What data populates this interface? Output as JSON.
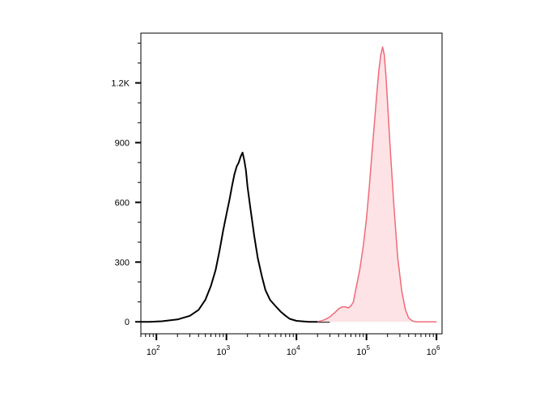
{
  "chart_data": {
    "type": "area",
    "title": "",
    "xlabel": "",
    "ylabel": "",
    "x_scale": "log",
    "xlim": [
      60,
      1200000
    ],
    "ylim": [
      -60,
      1450
    ],
    "grid": false,
    "legend": "none",
    "y_ticks": [
      {
        "value": 0,
        "label": "0"
      },
      {
        "value": 300,
        "label": "300"
      },
      {
        "value": 600,
        "label": "600"
      },
      {
        "value": 900,
        "label": "900"
      },
      {
        "value": 1200,
        "label": "1.2K"
      }
    ],
    "x_ticks": [
      {
        "value": 100,
        "base": "10",
        "exp": "2"
      },
      {
        "value": 1000,
        "base": "10",
        "exp": "3"
      },
      {
        "value": 10000,
        "base": "10",
        "exp": "4"
      },
      {
        "value": 100000,
        "base": "10",
        "exp": "5"
      },
      {
        "value": 1000000,
        "base": "10",
        "exp": "6"
      }
    ],
    "series": [
      {
        "color": "#000000",
        "fill": "none",
        "x": [
          60,
          80,
          120,
          200,
          300,
          400,
          500,
          600,
          700,
          800,
          900,
          1000,
          1100,
          1200,
          1300,
          1400,
          1500,
          1600,
          1700,
          1800,
          1900,
          2000,
          2200,
          2500,
          2800,
          3200,
          3600,
          4200,
          5000,
          6000,
          7000,
          8000,
          10000,
          15000,
          30000
        ],
        "y": [
          0,
          0,
          3,
          12,
          30,
          60,
          110,
          180,
          260,
          360,
          460,
          540,
          610,
          680,
          740,
          780,
          800,
          830,
          850,
          810,
          760,
          680,
          570,
          430,
          320,
          230,
          160,
          110,
          80,
          50,
          30,
          15,
          5,
          0,
          0
        ]
      },
      {
        "color": "#f06a78",
        "fill": "#fde3e6",
        "x": [
          20000,
          25000,
          30000,
          35000,
          40000,
          45000,
          50000,
          55000,
          60000,
          65000,
          70000,
          80000,
          90000,
          100000,
          110000,
          120000,
          130000,
          140000,
          150000,
          160000,
          170000,
          180000,
          190000,
          200000,
          220000,
          250000,
          280000,
          320000,
          360000,
          400000,
          450000,
          500000,
          1000000
        ],
        "y": [
          0,
          10,
          25,
          45,
          65,
          75,
          75,
          70,
          80,
          100,
          160,
          260,
          380,
          520,
          680,
          850,
          1000,
          1140,
          1260,
          1340,
          1380,
          1340,
          1230,
          1100,
          850,
          550,
          320,
          150,
          60,
          20,
          5,
          0,
          0
        ]
      }
    ]
  }
}
